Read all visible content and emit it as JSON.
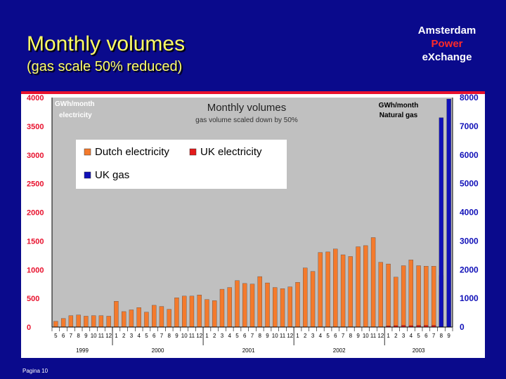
{
  "slide": {
    "title": "Monthly volumes",
    "subtitle": "(gas scale 50% reduced)",
    "logo": [
      "Amsterdam",
      "Power",
      "eXchange"
    ],
    "footer": "Pagina 10"
  },
  "colors": {
    "background": "#0a0a8c",
    "title": "#ffff66",
    "accent_red": "#e8112d",
    "plot_bg": "#c0c0c0",
    "dutch_electricity": "#f47a2c",
    "uk_electricity": "#e41a1a",
    "uk_gas": "#1010b8"
  },
  "chart_data": {
    "type": "bar",
    "title": "Monthly volumes",
    "subtitle": "gas volume scaled down by 50%",
    "left_axis_label": [
      "GWh/month",
      "electricity"
    ],
    "right_axis_label": [
      "GWh/month",
      "Natural gas"
    ],
    "ylim_left": [
      0,
      4000
    ],
    "yticks_left": [
      "0",
      "500",
      "1000",
      "1500",
      "2000",
      "2500",
      "3000",
      "3500",
      "4000"
    ],
    "ylim_right": [
      0,
      8000
    ],
    "yticks_right": [
      "0",
      "1000",
      "2000",
      "3000",
      "4000",
      "5000",
      "6000",
      "7000",
      "8000"
    ],
    "grid": false,
    "legend_position": "top-left",
    "x_month_labels": [
      "5",
      "6",
      "7",
      "8",
      "9",
      "10",
      "11",
      "12",
      "1",
      "2",
      "3",
      "4",
      "5",
      "6",
      "7",
      "8",
      "9",
      "10",
      "11",
      "12",
      "1",
      "2",
      "3",
      "4",
      "5",
      "6",
      "7",
      "8",
      "9",
      "10",
      "11",
      "12",
      "1",
      "2",
      "3",
      "4",
      "5",
      "6",
      "7",
      "8",
      "9",
      "10",
      "11",
      "12",
      "1",
      "2",
      "3",
      "4",
      "5",
      "6",
      "7",
      "8",
      "9"
    ],
    "x_year_labels": [
      {
        "label": "1999",
        "start": 0,
        "end": 7
      },
      {
        "label": "2000",
        "start": 8,
        "end": 19
      },
      {
        "label": "2001",
        "start": 20,
        "end": 31
      },
      {
        "label": "2002",
        "start": 32,
        "end": 43
      },
      {
        "label": "2003",
        "start": 44,
        "end": 52
      }
    ],
    "series": [
      {
        "name": "Dutch electricity",
        "axis": "left",
        "values": [
          100,
          150,
          200,
          210,
          190,
          200,
          200,
          190,
          450,
          270,
          300,
          340,
          260,
          380,
          360,
          310,
          510,
          540,
          540,
          560,
          480,
          460,
          660,
          690,
          810,
          760,
          750,
          880,
          770,
          690,
          670,
          700,
          780,
          1030,
          970,
          1300,
          1310,
          1360,
          1260,
          1230,
          1400,
          1420,
          1560,
          1130,
          1100,
          870,
          1070,
          1170,
          1070,
          1060,
          1060,
          900,
          0
        ]
      },
      {
        "name": "UK electricity",
        "axis": "left",
        "values": [
          0,
          0,
          0,
          0,
          0,
          0,
          0,
          0,
          0,
          0,
          0,
          0,
          0,
          0,
          0,
          0,
          0,
          0,
          0,
          0,
          0,
          0,
          0,
          0,
          0,
          0,
          0,
          0,
          0,
          0,
          0,
          0,
          0,
          0,
          0,
          0,
          0,
          0,
          0,
          0,
          0,
          0,
          0,
          0,
          20,
          25,
          30,
          25,
          30,
          30,
          30,
          0,
          0
        ]
      },
      {
        "name": "UK gas",
        "axis": "right",
        "values": [
          0,
          0,
          0,
          0,
          0,
          0,
          0,
          0,
          0,
          0,
          0,
          0,
          0,
          0,
          0,
          0,
          0,
          0,
          0,
          0,
          0,
          0,
          0,
          0,
          0,
          0,
          0,
          0,
          0,
          0,
          0,
          0,
          0,
          0,
          0,
          0,
          0,
          0,
          0,
          0,
          0,
          0,
          0,
          0,
          0,
          0,
          0,
          0,
          0,
          0,
          0,
          7300,
          7950
        ]
      }
    ]
  }
}
